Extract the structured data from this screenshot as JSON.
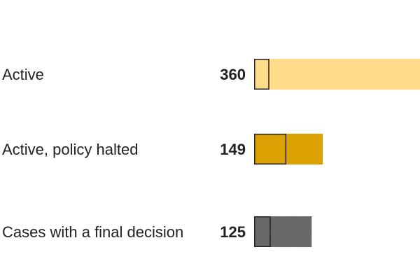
{
  "chart_data": {
    "type": "bar",
    "orientation": "horizontal",
    "title": "",
    "xlabel": "",
    "ylabel": "",
    "categories": [
      "Active",
      "Active, policy halted",
      "Cases with a final decision"
    ],
    "values": [
      360,
      149,
      125
    ],
    "highlighted_portion": [
      33,
      70,
      36
    ],
    "colors": [
      "#ffdb8a",
      "#dba100",
      "#5f5f5f"
    ],
    "highlight_outline_color": "#222222",
    "grid": false,
    "legend": "none"
  }
}
